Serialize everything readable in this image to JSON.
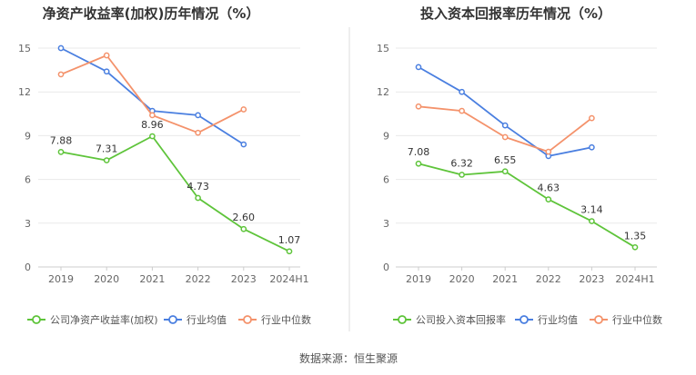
{
  "colors": {
    "company": "#5ec43a",
    "avg": "#4a7fe0",
    "median": "#f4926b",
    "grid": "#e9e9e9",
    "axis": "#cccccc",
    "divider": "#dddddd"
  },
  "chart_data": [
    {
      "type": "line",
      "title": "净资产收益率(加权)历年情况（%）",
      "categories": [
        "2019",
        "2020",
        "2021",
        "2022",
        "2023",
        "2024H1"
      ],
      "ylim": [
        0,
        15
      ],
      "yticks": [
        "0",
        "3",
        "6",
        "9",
        "12",
        "15"
      ],
      "series": [
        {
          "name": "公司净资产收益率(加权)",
          "key": "company",
          "values": [
            7.88,
            7.31,
            8.96,
            4.73,
            2.6,
            1.07
          ],
          "labels": [
            "7.88",
            "7.31",
            "8.96",
            "4.73",
            "2.60",
            "1.07"
          ]
        },
        {
          "name": "行业均值",
          "key": "avg",
          "values": [
            15.0,
            13.4,
            10.7,
            10.4,
            8.4,
            null
          ]
        },
        {
          "name": "行业中位数",
          "key": "median",
          "values": [
            13.2,
            14.5,
            10.4,
            9.2,
            10.8,
            null
          ]
        }
      ]
    },
    {
      "type": "line",
      "title": "投入资本回报率历年情况（%）",
      "categories": [
        "2019",
        "2020",
        "2021",
        "2022",
        "2023",
        "2024H1"
      ],
      "ylim": [
        0,
        15
      ],
      "yticks": [
        "0",
        "3",
        "6",
        "9",
        "12",
        "15"
      ],
      "series": [
        {
          "name": "公司投入资本回报率",
          "key": "company",
          "values": [
            7.08,
            6.32,
            6.55,
            4.63,
            3.14,
            1.35
          ],
          "labels": [
            "7.08",
            "6.32",
            "6.55",
            "4.63",
            "3.14",
            "1.35"
          ]
        },
        {
          "name": "行业均值",
          "key": "avg",
          "values": [
            13.7,
            12.0,
            9.7,
            7.6,
            8.2,
            null
          ]
        },
        {
          "name": "行业中位数",
          "key": "median",
          "values": [
            11.0,
            10.7,
            8.9,
            7.9,
            10.2,
            null
          ]
        }
      ]
    }
  ],
  "source": "数据来源：恒生聚源"
}
